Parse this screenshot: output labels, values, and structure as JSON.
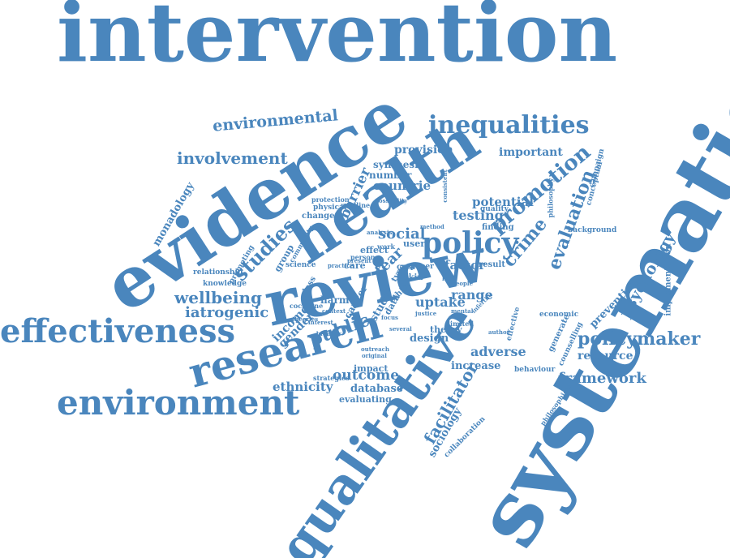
{
  "color": "#4a86bd",
  "background": "#ffffff",
  "words": [
    "intervention",
    "systematic",
    "evidence",
    "health",
    "review",
    "qualitative",
    "research",
    "effectiveness",
    "environment",
    "policy",
    "inequalities",
    "promotion",
    "environmental",
    "involvement",
    "studies",
    "wellbeing",
    "iatrogenic",
    "framework",
    "policymaker",
    "psychology",
    "crime",
    "evaluation",
    "social",
    "provision",
    "important",
    "testing",
    "countrie",
    "number",
    "synthesis",
    "barrier",
    "fear",
    "uptake",
    "factor",
    "adverse",
    "outcome",
    "ethnicity",
    "database",
    "evaluating",
    "facilitator",
    "sociology",
    "collaboration",
    "monadology",
    "relationship",
    "knowledge",
    "public",
    "gender",
    "income",
    "cancer",
    "harm",
    "design",
    "theory",
    "increase",
    "impact",
    "range",
    "resource",
    "prevention",
    "implementation",
    "background",
    "conceptual",
    "campaign",
    "philosophy",
    "potential",
    "quality",
    "finding",
    "user",
    "paper",
    "cost",
    "care",
    "skin",
    "ethic",
    "data",
    "study",
    "type",
    "effect",
    "work",
    "science",
    "group",
    "community",
    "promoting",
    "protection",
    "physical",
    "change",
    "medline",
    "class",
    "cochrane",
    "strategies",
    "original",
    "behaviour",
    "economic",
    "effective",
    "generate",
    "counselling",
    "philosophical",
    "result",
    "person",
    "possibility",
    "consistent",
    "method",
    "limited",
    "present",
    "analysis",
    "theories",
    "interest",
    "context",
    "broader",
    "several",
    "outreach",
    "infertile",
    "lack",
    "focus",
    "practice",
    "author",
    "people",
    "mental",
    "justice"
  ]
}
